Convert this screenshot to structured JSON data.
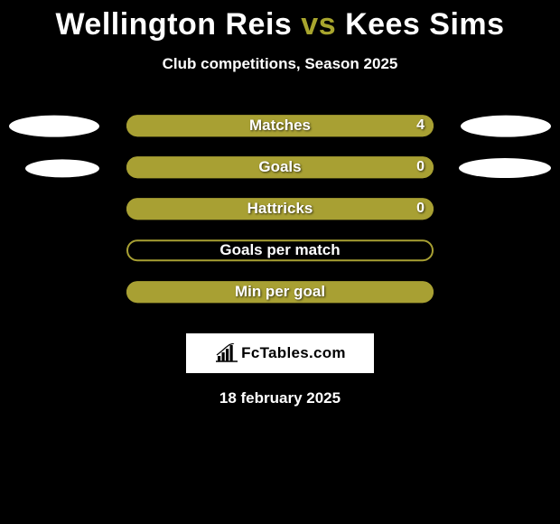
{
  "title": {
    "player1": "Wellington Reis",
    "vs": "vs",
    "player2": "Kees Sims",
    "color_main": "#ffffff",
    "color_highlight": "#a8a52e",
    "fontsize": 34
  },
  "subtitle": "Club competitions, Season 2025",
  "bar_color": "#a8a033",
  "outline_color": "#a8a033",
  "background_color": "#000000",
  "rows": [
    {
      "label": "Matches",
      "value": "4",
      "show_value": true,
      "fill_pct": 100,
      "ellipse_left": true,
      "ellipse_right": true,
      "el_left_w": 100,
      "el_left_h": 24,
      "el_right_w": 100,
      "el_right_h": 24
    },
    {
      "label": "Goals",
      "value": "0",
      "show_value": true,
      "fill_pct": 100,
      "ellipse_left": true,
      "ellipse_right": true,
      "el_left_w": 82,
      "el_left_h": 20,
      "el_right_w": 102,
      "el_right_h": 22
    },
    {
      "label": "Hattricks",
      "value": "0",
      "show_value": true,
      "fill_pct": 100,
      "ellipse_left": false,
      "ellipse_right": false
    },
    {
      "label": "Goals per match",
      "value": "",
      "show_value": false,
      "fill_pct": 0,
      "ellipse_left": false,
      "ellipse_right": false
    },
    {
      "label": "Min per goal",
      "value": "",
      "show_value": false,
      "fill_pct": 100,
      "ellipse_left": false,
      "ellipse_right": false
    }
  ],
  "logo": {
    "icon_name": "bar-chart-icon",
    "text": "FcTables.com",
    "box_bg": "#ffffff",
    "text_color": "#000000"
  },
  "date": "18 february 2025"
}
